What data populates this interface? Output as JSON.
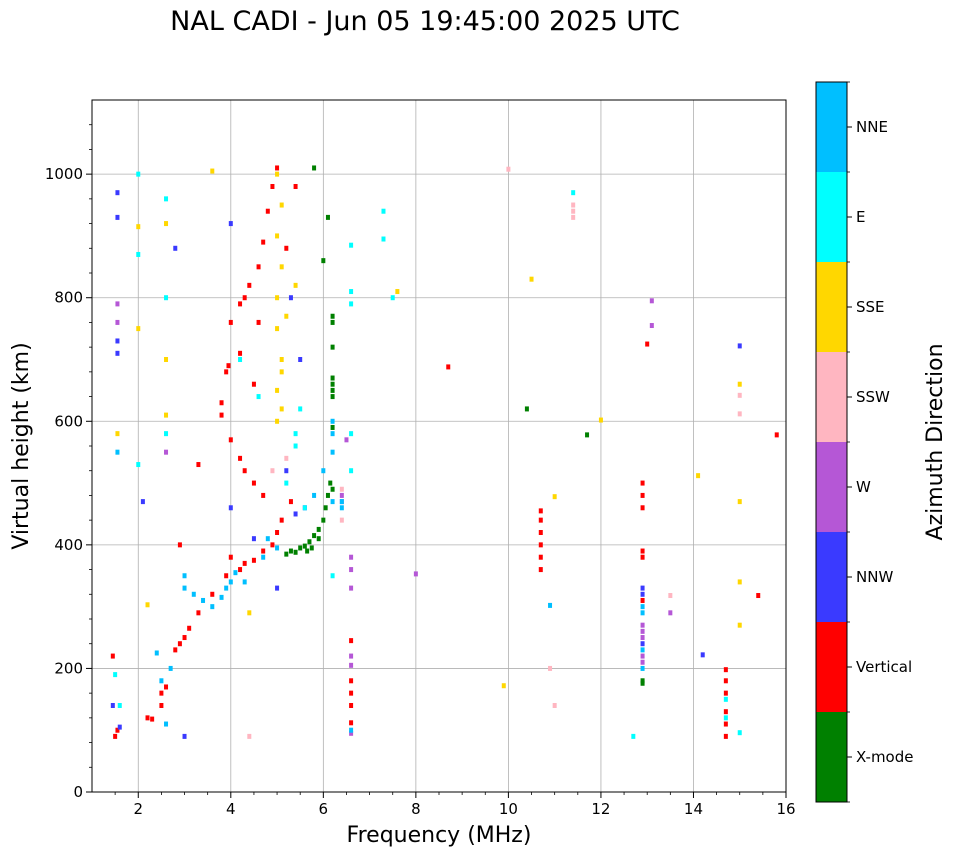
{
  "chart_data": {
    "type": "scatter",
    "title": "NAL CADI - Jun 05 19:45:00 2025 UTC",
    "xlabel": "Frequency (MHz)",
    "ylabel": "Virtual height (km)",
    "xlim": [
      1,
      16
    ],
    "ylim": [
      0,
      1120
    ],
    "x_ticks": [
      2,
      4,
      6,
      8,
      10,
      12,
      14,
      16
    ],
    "x_tick_labels": [
      "2",
      "4",
      "6",
      "8",
      "10",
      "12",
      "14",
      "16"
    ],
    "y_ticks": [
      0,
      200,
      400,
      600,
      800,
      1000
    ],
    "y_tick_labels": [
      "0",
      "200",
      "400",
      "600",
      "800",
      "1000"
    ],
    "grid": true,
    "colorbar": {
      "label": "Azimuth Direction",
      "categories": [
        "X-mode",
        "Vertical",
        "NNW",
        "W",
        "SSW",
        "SSE",
        "E",
        "NNE"
      ],
      "colors": [
        "#008000",
        "#ff0000",
        "#3a3aff",
        "#b557d6",
        "#ffb6c1",
        "#ffd700",
        "#00ffff",
        "#00bfff"
      ]
    },
    "series": [
      {
        "name": "X-mode",
        "points": [
          [
            5.2,
            385
          ],
          [
            5.3,
            390
          ],
          [
            5.4,
            388
          ],
          [
            5.5,
            395
          ],
          [
            5.6,
            398
          ],
          [
            5.7,
            405
          ],
          [
            5.8,
            415
          ],
          [
            5.9,
            425
          ],
          [
            6.0,
            440
          ],
          [
            6.05,
            460
          ],
          [
            6.1,
            480
          ],
          [
            6.15,
            500
          ],
          [
            5.9,
            410
          ],
          [
            5.75,
            395
          ],
          [
            5.65,
            390
          ],
          [
            6.2,
            490
          ],
          [
            6.2,
            760
          ],
          [
            6.2,
            770
          ],
          [
            6.2,
            640
          ],
          [
            6.2,
            650
          ],
          [
            6.2,
            660
          ],
          [
            6.2,
            670
          ],
          [
            6.2,
            590
          ],
          [
            6.2,
            720
          ],
          [
            6.0,
            860
          ],
          [
            6.1,
            930
          ],
          [
            5.8,
            1010
          ],
          [
            12.9,
            180
          ],
          [
            12.9,
            176
          ],
          [
            10.4,
            620
          ],
          [
            11.7,
            578
          ]
        ]
      },
      {
        "name": "Vertical",
        "points": [
          [
            1.45,
            220
          ],
          [
            1.5,
            90
          ],
          [
            1.55,
            100
          ],
          [
            2.2,
            120
          ],
          [
            2.3,
            118
          ],
          [
            2.5,
            140
          ],
          [
            2.5,
            160
          ],
          [
            2.6,
            170
          ],
          [
            2.8,
            230
          ],
          [
            2.9,
            240
          ],
          [
            3.0,
            250
          ],
          [
            3.1,
            265
          ],
          [
            3.3,
            290
          ],
          [
            3.6,
            320
          ],
          [
            3.9,
            350
          ],
          [
            4.0,
            380
          ],
          [
            4.2,
            360
          ],
          [
            4.3,
            370
          ],
          [
            4.5,
            375
          ],
          [
            4.7,
            390
          ],
          [
            4.9,
            400
          ],
          [
            5.0,
            420
          ],
          [
            5.1,
            440
          ],
          [
            5.3,
            470
          ],
          [
            4.7,
            480
          ],
          [
            4.5,
            500
          ],
          [
            4.3,
            520
          ],
          [
            4.2,
            540
          ],
          [
            4.0,
            570
          ],
          [
            3.8,
            610
          ],
          [
            3.8,
            630
          ],
          [
            3.9,
            680
          ],
          [
            3.95,
            690
          ],
          [
            4.0,
            760
          ],
          [
            4.2,
            790
          ],
          [
            4.3,
            800
          ],
          [
            4.4,
            820
          ],
          [
            4.6,
            850
          ],
          [
            4.7,
            890
          ],
          [
            4.8,
            940
          ],
          [
            4.9,
            980
          ],
          [
            5.0,
            1010
          ],
          [
            4.2,
            710
          ],
          [
            4.5,
            660
          ],
          [
            5.2,
            880
          ],
          [
            5.4,
            980
          ],
          [
            4.6,
            760
          ],
          [
            3.3,
            530
          ],
          [
            2.9,
            400
          ],
          [
            6.6,
            160
          ],
          [
            6.6,
            180
          ],
          [
            6.6,
            245
          ],
          [
            6.6,
            140
          ],
          [
            6.6,
            112
          ],
          [
            8.7,
            688
          ],
          [
            10.7,
            360
          ],
          [
            10.7,
            380
          ],
          [
            10.7,
            400
          ],
          [
            10.7,
            420
          ],
          [
            10.7,
            440
          ],
          [
            10.7,
            455
          ],
          [
            12.9,
            380
          ],
          [
            12.9,
            390
          ],
          [
            12.9,
            460
          ],
          [
            12.9,
            480
          ],
          [
            12.9,
            500
          ],
          [
            12.9,
            310
          ],
          [
            13.0,
            725
          ],
          [
            14.7,
            90
          ],
          [
            14.7,
            110
          ],
          [
            14.7,
            130
          ],
          [
            14.7,
            160
          ],
          [
            14.7,
            180
          ],
          [
            14.7,
            198
          ],
          [
            15.4,
            318
          ],
          [
            15.8,
            578
          ]
        ]
      },
      {
        "name": "NNW",
        "points": [
          [
            1.55,
            970
          ],
          [
            1.55,
            930
          ],
          [
            1.55,
            730
          ],
          [
            1.55,
            710
          ],
          [
            1.45,
            140
          ],
          [
            1.6,
            105
          ],
          [
            2.1,
            470
          ],
          [
            2.8,
            880
          ],
          [
            4.0,
            920
          ],
          [
            4.0,
            460
          ],
          [
            4.5,
            410
          ],
          [
            5.0,
            330
          ],
          [
            5.4,
            450
          ],
          [
            5.6,
            460
          ],
          [
            5.2,
            520
          ],
          [
            5.5,
            700
          ],
          [
            5.3,
            800
          ],
          [
            3.0,
            90
          ],
          [
            12.9,
            320
          ],
          [
            12.9,
            330
          ],
          [
            12.9,
            240
          ],
          [
            14.2,
            222
          ],
          [
            15.0,
            722
          ]
        ]
      },
      {
        "name": "W",
        "points": [
          [
            1.55,
            760
          ],
          [
            1.55,
            790
          ],
          [
            2.6,
            550
          ],
          [
            6.5,
            570
          ],
          [
            6.6,
            380
          ],
          [
            6.6,
            360
          ],
          [
            6.6,
            330
          ],
          [
            6.6,
            220
          ],
          [
            6.6,
            205
          ],
          [
            6.6,
            95
          ],
          [
            6.4,
            480
          ],
          [
            6.4,
            470
          ],
          [
            8.0,
            353
          ],
          [
            12.9,
            250
          ],
          [
            12.9,
            260
          ],
          [
            12.9,
            270
          ],
          [
            12.9,
            220
          ],
          [
            12.9,
            210
          ],
          [
            13.1,
            795
          ],
          [
            13.1,
            755
          ],
          [
            13.5,
            290
          ]
        ]
      },
      {
        "name": "SSW",
        "points": [
          [
            4.9,
            520
          ],
          [
            5.2,
            540
          ],
          [
            4.4,
            90
          ],
          [
            6.4,
            490
          ],
          [
            6.4,
            440
          ],
          [
            10.0,
            1008
          ],
          [
            10.9,
            200
          ],
          [
            11.0,
            140
          ],
          [
            11.4,
            930
          ],
          [
            11.4,
            940
          ],
          [
            11.4,
            950
          ],
          [
            13.5,
            318
          ],
          [
            15.0,
            612
          ],
          [
            15.0,
            642
          ]
        ]
      },
      {
        "name": "SSE",
        "points": [
          [
            1.55,
            580
          ],
          [
            2.0,
            750
          ],
          [
            2.0,
            915
          ],
          [
            2.6,
            920
          ],
          [
            2.6,
            700
          ],
          [
            2.6,
            610
          ],
          [
            3.6,
            1005
          ],
          [
            4.4,
            290
          ],
          [
            5.0,
            600
          ],
          [
            5.1,
            620
          ],
          [
            5.0,
            650
          ],
          [
            5.1,
            700
          ],
          [
            5.0,
            750
          ],
          [
            5.0,
            800
          ],
          [
            5.1,
            850
          ],
          [
            5.0,
            900
          ],
          [
            5.1,
            950
          ],
          [
            5.0,
            1000
          ],
          [
            5.2,
            770
          ],
          [
            5.4,
            820
          ],
          [
            5.1,
            680
          ],
          [
            7.6,
            810
          ],
          [
            9.9,
            172
          ],
          [
            10.5,
            830
          ],
          [
            11.0,
            478
          ],
          [
            12.0,
            602
          ],
          [
            14.1,
            512
          ],
          [
            15.0,
            660
          ],
          [
            15.0,
            470
          ],
          [
            15.0,
            340
          ],
          [
            15.0,
            270
          ],
          [
            2.2,
            303
          ]
        ]
      },
      {
        "name": "E",
        "points": [
          [
            1.5,
            190
          ],
          [
            1.6,
            140
          ],
          [
            2.0,
            1000
          ],
          [
            2.0,
            870
          ],
          [
            2.6,
            960
          ],
          [
            2.6,
            800
          ],
          [
            2.6,
            580
          ],
          [
            2.0,
            530
          ],
          [
            4.2,
            700
          ],
          [
            4.6,
            640
          ],
          [
            5.5,
            620
          ],
          [
            5.4,
            580
          ],
          [
            5.4,
            560
          ],
          [
            5.2,
            500
          ],
          [
            5.6,
            460
          ],
          [
            6.6,
            885
          ],
          [
            6.6,
            810
          ],
          [
            6.6,
            790
          ],
          [
            6.6,
            580
          ],
          [
            6.6,
            520
          ],
          [
            6.2,
            350
          ],
          [
            7.3,
            940
          ],
          [
            7.3,
            895
          ],
          [
            7.5,
            800
          ],
          [
            11.4,
            970
          ],
          [
            12.7,
            90
          ],
          [
            14.7,
            120
          ],
          [
            14.7,
            150
          ],
          [
            15.0,
            96
          ]
        ]
      },
      {
        "name": "NNE",
        "points": [
          [
            1.55,
            550
          ],
          [
            2.5,
            180
          ],
          [
            2.6,
            110
          ],
          [
            3.0,
            330
          ],
          [
            3.0,
            350
          ],
          [
            3.2,
            320
          ],
          [
            3.4,
            310
          ],
          [
            3.6,
            300
          ],
          [
            3.8,
            315
          ],
          [
            3.9,
            330
          ],
          [
            4.0,
            340
          ],
          [
            4.1,
            355
          ],
          [
            4.3,
            340
          ],
          [
            4.7,
            380
          ],
          [
            5.0,
            395
          ],
          [
            4.8,
            410
          ],
          [
            2.4,
            225
          ],
          [
            2.7,
            200
          ],
          [
            5.8,
            480
          ],
          [
            6.0,
            520
          ],
          [
            6.2,
            580
          ],
          [
            6.2,
            600
          ],
          [
            6.2,
            470
          ],
          [
            6.2,
            550
          ],
          [
            6.4,
            470
          ],
          [
            6.4,
            460
          ],
          [
            6.6,
            100
          ],
          [
            10.9,
            302
          ],
          [
            12.9,
            200
          ],
          [
            12.9,
            230
          ],
          [
            12.9,
            290
          ],
          [
            12.9,
            300
          ]
        ]
      }
    ]
  }
}
